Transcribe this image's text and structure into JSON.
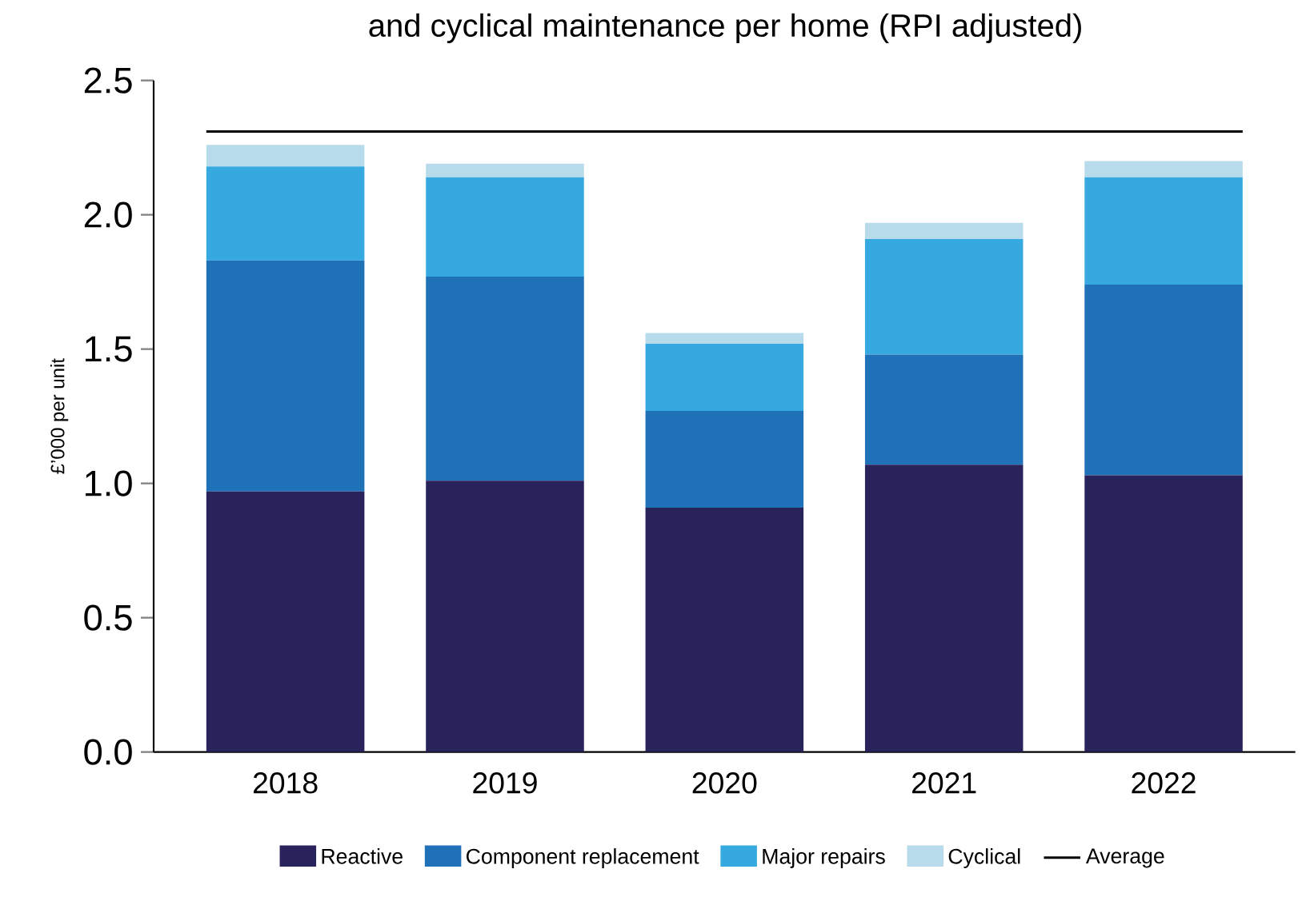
{
  "chart_data": {
    "type": "bar",
    "stacked": true,
    "title": "and cyclical maintenance per home (RPI adjusted)",
    "ylabel": "£’000 per unit",
    "categories": [
      "2018",
      "2019",
      "2020",
      "2021",
      "2022"
    ],
    "series": [
      {
        "name": "Reactive",
        "color": "#29235c",
        "values": [
          0.97,
          1.01,
          0.91,
          1.07,
          1.03
        ]
      },
      {
        "name": "Component replacement",
        "color": "#1f71b8",
        "values": [
          0.86,
          0.76,
          0.36,
          0.41,
          0.71
        ]
      },
      {
        "name": "Major repairs",
        "color": "#36a9e1",
        "values": [
          0.35,
          0.37,
          0.25,
          0.43,
          0.4
        ]
      },
      {
        "name": "Cyclical",
        "color": "#b7dbea",
        "values": [
          0.08,
          0.05,
          0.04,
          0.06,
          0.06
        ]
      }
    ],
    "ref_lines": [
      {
        "axis": "y",
        "value": 2.31,
        "label": "Average",
        "color": "#000000",
        "line_style": "solid"
      }
    ],
    "ylim": [
      0,
      2.5
    ],
    "yticks": [
      {
        "value": 0,
        "label": "0.0"
      },
      0.5,
      {
        "value": 1,
        "label": "1.0"
      },
      1.5,
      {
        "value": 2,
        "label": "2.0"
      },
      2.5
    ],
    "grid": false,
    "legend": "bottom"
  }
}
